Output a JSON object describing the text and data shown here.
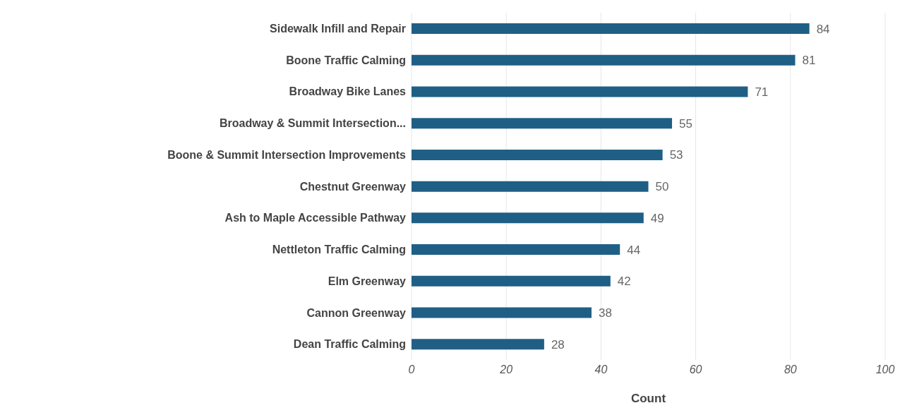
{
  "chart_data": {
    "type": "bar",
    "orientation": "horizontal",
    "xlabel": "Count",
    "categories": [
      "Sidewalk Infill and Repair",
      "Boone Traffic Calming",
      "Broadway  Bike Lanes",
      "Broadway & Summit Intersection...",
      "Boone & Summit Intersection Improvements",
      "Chestnut Greenway",
      "Ash to Maple Accessible Pathway",
      "Nettleton Traffic Calming",
      "Elm Greenway",
      "Cannon Greenway",
      "Dean Traffic Calming"
    ],
    "values": [
      84,
      81,
      71,
      55,
      53,
      50,
      49,
      44,
      42,
      38,
      28
    ],
    "color": "#1f5f86",
    "xlim": [
      0,
      100
    ],
    "xticks": [
      0,
      20,
      40,
      60,
      80,
      100
    ],
    "grid": "x",
    "data_labels": true
  }
}
